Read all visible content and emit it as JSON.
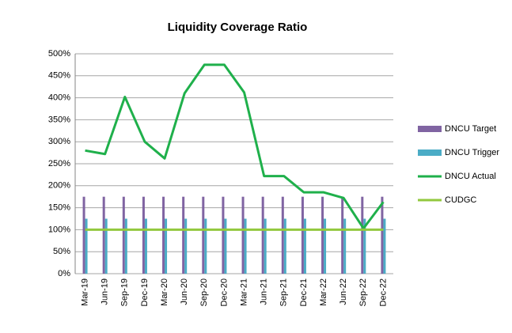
{
  "chart_data": {
    "type": "bar-line",
    "title": "Liquidity Coverage Ratio",
    "categories": [
      "Mar-19",
      "Jun-19",
      "Sep-19",
      "Dec-19",
      "Mar-20",
      "Jun-20",
      "Sep-20",
      "Dec-20",
      "Mar-21",
      "Jun-21",
      "Sep-21",
      "Dec-21",
      "Mar-22",
      "Jun-22",
      "Sep-22",
      "Dec-22"
    ],
    "series": [
      {
        "name": "DNCU Target",
        "type": "bar",
        "color": "#8064a2",
        "values": [
          175,
          175,
          175,
          175,
          175,
          175,
          175,
          175,
          175,
          175,
          175,
          175,
          175,
          175,
          175,
          175
        ]
      },
      {
        "name": "DNCU Trigger",
        "type": "bar",
        "color": "#4bacc6",
        "values": [
          125,
          125,
          125,
          125,
          125,
          125,
          125,
          125,
          125,
          125,
          125,
          125,
          125,
          125,
          125,
          125
        ]
      },
      {
        "name": "DNCU Actual",
        "type": "line",
        "color": "#1fb04b",
        "values": [
          280,
          272,
          402,
          300,
          262,
          410,
          475,
          475,
          412,
          222,
          222,
          185,
          185,
          172,
          103,
          163
        ]
      },
      {
        "name": "CUDGC",
        "type": "line",
        "color": "#92c83e",
        "values": [
          100,
          100,
          100,
          100,
          100,
          100,
          100,
          100,
          100,
          100,
          100,
          100,
          100,
          100,
          100,
          100
        ]
      }
    ],
    "ylim": [
      0,
      500
    ],
    "yticks": [
      {
        "value": 0,
        "label": "0%"
      },
      {
        "value": 50,
        "label": "50%"
      },
      {
        "value": 100,
        "label": "100%"
      },
      {
        "value": 150,
        "label": "150%"
      },
      {
        "value": 200,
        "label": "200%"
      },
      {
        "value": 250,
        "label": "250%"
      },
      {
        "value": 300,
        "label": "300%"
      },
      {
        "value": 350,
        "label": "350%"
      },
      {
        "value": 400,
        "label": "400%"
      },
      {
        "value": 450,
        "label": "450%"
      },
      {
        "value": 500,
        "label": "500%"
      }
    ],
    "grid": true,
    "legend": "right"
  }
}
